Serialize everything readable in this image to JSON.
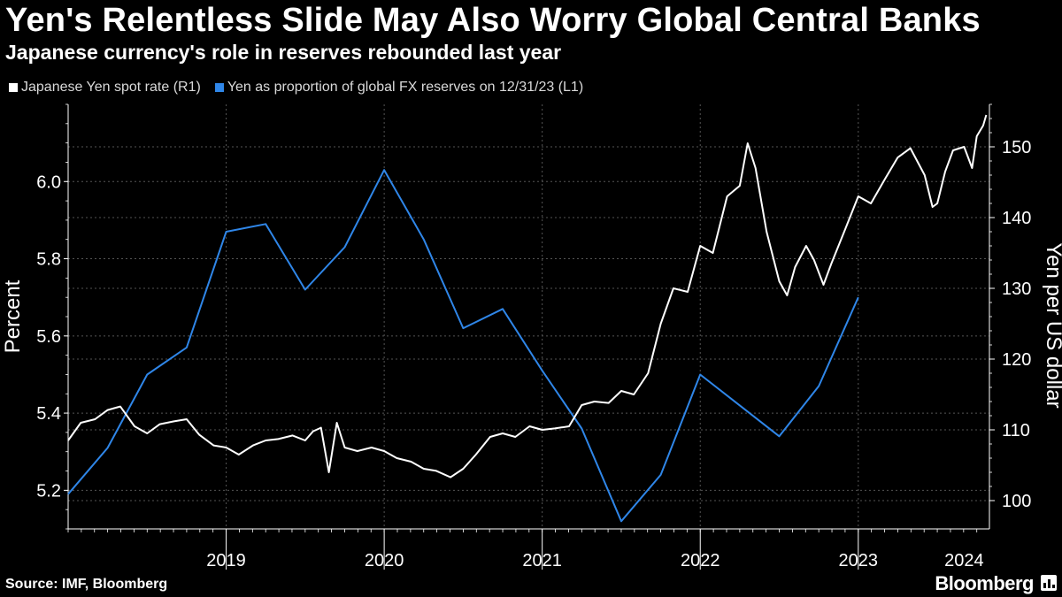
{
  "header": {
    "title": "Yen's Relentless Slide May Also Worry Global Central Banks",
    "subtitle": "Japanese currency's role in reserves rebounded last year"
  },
  "legend": {
    "items": [
      {
        "label": "Japanese Yen spot rate (R1)",
        "color": "#ffffff"
      },
      {
        "label": "Yen as proportion of global FX reserves on 12/31/23 (L1)",
        "color": "#2f86e8"
      }
    ]
  },
  "footer": {
    "source": "Source: IMF, Bloomberg",
    "brand": "Bloomberg"
  },
  "colors": {
    "background": "#000000",
    "grid": "#555555",
    "axis": "#ffffff",
    "reserves_line": "#2f86e8",
    "spot_line": "#ffffff"
  },
  "chart_data": {
    "type": "line",
    "title": "Yen's Relentless Slide May Also Worry Global Central Banks",
    "subtitle": "Japanese currency's role in reserves rebounded last year",
    "x_range": [
      2018.5,
      2024.33
    ],
    "x_ticks": [
      {
        "label": "2019",
        "value": 2019.5
      },
      {
        "label": "2020",
        "value": 2020.5
      },
      {
        "label": "2021",
        "value": 2021.5
      },
      {
        "label": "2022",
        "value": 2022.5
      },
      {
        "label": "2023",
        "value": 2023.5
      },
      {
        "label": "2024",
        "value": 2024.17
      }
    ],
    "year_boundaries": [
      2019.5,
      2020.5,
      2021.5,
      2022.5,
      2023.5
    ],
    "left_axis": {
      "label": "Percent",
      "min": 5.1,
      "max": 6.2,
      "ticks": [
        5.2,
        5.4,
        5.6,
        5.8,
        6.0
      ]
    },
    "right_axis": {
      "label": "Yen per US dollar",
      "min": 96,
      "max": 156,
      "ticks": [
        100,
        110,
        120,
        130,
        140,
        150
      ]
    },
    "series": [
      {
        "name": "Yen as proportion of global FX reserves on 12/31/23 (L1)",
        "axis": "left",
        "color": "#2f86e8",
        "points": [
          [
            2018.5,
            5.19
          ],
          [
            2018.75,
            5.31
          ],
          [
            2019.0,
            5.5
          ],
          [
            2019.25,
            5.57
          ],
          [
            2019.5,
            5.87
          ],
          [
            2019.75,
            5.89
          ],
          [
            2020.0,
            5.72
          ],
          [
            2020.25,
            5.83
          ],
          [
            2020.5,
            6.03
          ],
          [
            2020.75,
            5.85
          ],
          [
            2021.0,
            5.62
          ],
          [
            2021.25,
            5.67
          ],
          [
            2021.5,
            5.51
          ],
          [
            2021.75,
            5.36
          ],
          [
            2022.0,
            5.12
          ],
          [
            2022.25,
            5.24
          ],
          [
            2022.5,
            5.5
          ],
          [
            2022.75,
            5.42
          ],
          [
            2023.0,
            5.34
          ],
          [
            2023.25,
            5.47
          ],
          [
            2023.5,
            5.7
          ]
        ]
      },
      {
        "name": "Japanese Yen spot rate (R1)",
        "axis": "right",
        "color": "#ffffff",
        "points": [
          [
            2018.5,
            108.5
          ],
          [
            2018.58,
            111.0
          ],
          [
            2018.67,
            111.5
          ],
          [
            2018.75,
            112.8
          ],
          [
            2018.83,
            113.3
          ],
          [
            2018.92,
            110.5
          ],
          [
            2019.0,
            109.5
          ],
          [
            2019.08,
            110.8
          ],
          [
            2019.17,
            111.2
          ],
          [
            2019.25,
            111.5
          ],
          [
            2019.33,
            109.3
          ],
          [
            2019.42,
            107.8
          ],
          [
            2019.5,
            107.5
          ],
          [
            2019.58,
            106.5
          ],
          [
            2019.67,
            107.8
          ],
          [
            2019.75,
            108.5
          ],
          [
            2019.83,
            108.7
          ],
          [
            2019.92,
            109.2
          ],
          [
            2020.0,
            108.5
          ],
          [
            2020.05,
            109.8
          ],
          [
            2020.1,
            110.3
          ],
          [
            2020.15,
            104.0
          ],
          [
            2020.2,
            111.0
          ],
          [
            2020.25,
            107.5
          ],
          [
            2020.33,
            107.0
          ],
          [
            2020.42,
            107.5
          ],
          [
            2020.5,
            107.0
          ],
          [
            2020.58,
            106.0
          ],
          [
            2020.67,
            105.5
          ],
          [
            2020.75,
            104.5
          ],
          [
            2020.83,
            104.2
          ],
          [
            2020.92,
            103.3
          ],
          [
            2021.0,
            104.5
          ],
          [
            2021.08,
            106.5
          ],
          [
            2021.17,
            109.0
          ],
          [
            2021.25,
            109.5
          ],
          [
            2021.33,
            109.0
          ],
          [
            2021.42,
            110.5
          ],
          [
            2021.5,
            110.0
          ],
          [
            2021.58,
            110.2
          ],
          [
            2021.67,
            110.5
          ],
          [
            2021.75,
            113.5
          ],
          [
            2021.83,
            114.0
          ],
          [
            2021.92,
            113.8
          ],
          [
            2022.0,
            115.5
          ],
          [
            2022.08,
            115.0
          ],
          [
            2022.17,
            118.0
          ],
          [
            2022.25,
            125.0
          ],
          [
            2022.33,
            130.0
          ],
          [
            2022.42,
            129.5
          ],
          [
            2022.5,
            136.0
          ],
          [
            2022.58,
            135.0
          ],
          [
            2022.67,
            143.0
          ],
          [
            2022.75,
            144.5
          ],
          [
            2022.8,
            150.5
          ],
          [
            2022.85,
            147.0
          ],
          [
            2022.92,
            138.0
          ],
          [
            2023.0,
            131.0
          ],
          [
            2023.05,
            129.0
          ],
          [
            2023.1,
            133.0
          ],
          [
            2023.17,
            136.0
          ],
          [
            2023.22,
            134.0
          ],
          [
            2023.28,
            130.5
          ],
          [
            2023.33,
            133.5
          ],
          [
            2023.42,
            138.5
          ],
          [
            2023.5,
            143.0
          ],
          [
            2023.58,
            142.0
          ],
          [
            2023.67,
            145.5
          ],
          [
            2023.75,
            148.5
          ],
          [
            2023.83,
            149.8
          ],
          [
            2023.92,
            146.0
          ],
          [
            2023.97,
            141.5
          ],
          [
            2024.0,
            142.0
          ],
          [
            2024.05,
            146.5
          ],
          [
            2024.1,
            149.5
          ],
          [
            2024.17,
            150.0
          ],
          [
            2024.22,
            147.0
          ],
          [
            2024.25,
            151.5
          ],
          [
            2024.29,
            153.0
          ],
          [
            2024.31,
            154.5
          ]
        ]
      }
    ]
  }
}
